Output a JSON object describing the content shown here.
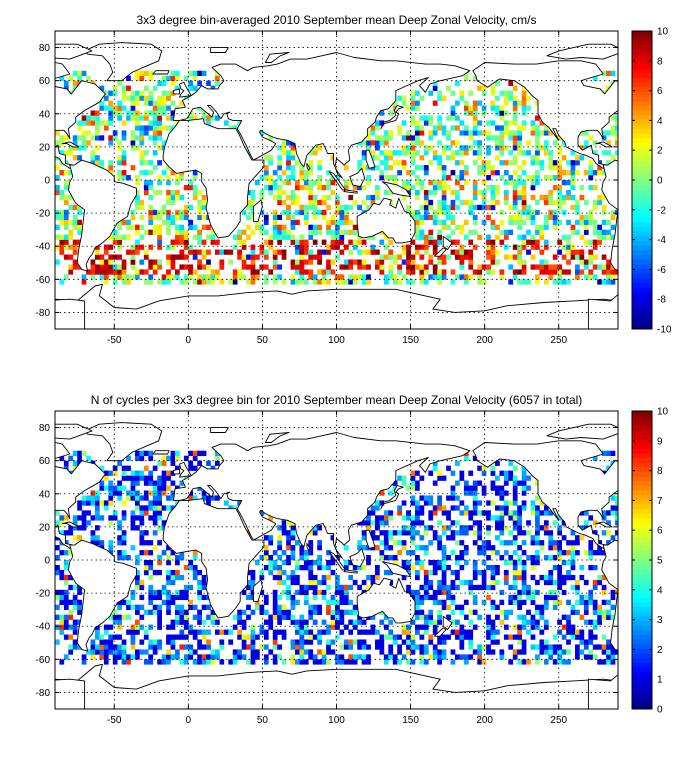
{
  "chart_data": [
    {
      "type": "heatmap",
      "title": "3x3 degree bin-averaged 2010 September mean Deep Zonal Velocity, cm/s",
      "xlim": [
        -90,
        290
      ],
      "ylim": [
        -90,
        90
      ],
      "xticks": [
        -50,
        0,
        50,
        100,
        150,
        200,
        250
      ],
      "yticks": [
        -80,
        -60,
        -40,
        -20,
        0,
        20,
        40,
        60,
        80
      ],
      "bin_size_deg": 3,
      "grid": true,
      "colorbar": {
        "min": -10,
        "max": 10,
        "ticks": [
          10,
          8,
          6,
          4,
          2,
          0,
          -2,
          -4,
          -6,
          -8,
          -10
        ],
        "colormap": "jet",
        "placement": "right"
      },
      "field": "deep_zonal_velocity"
    },
    {
      "type": "heatmap",
      "title": "N of cycles per 3x3 degree bin for 2010 September mean Deep Zonal Velocity (6057 in total)",
      "xlim": [
        -90,
        290
      ],
      "ylim": [
        -90,
        90
      ],
      "xticks": [
        -50,
        0,
        50,
        100,
        150,
        200,
        250
      ],
      "yticks": [
        -80,
        -60,
        -40,
        -20,
        0,
        20,
        40,
        60,
        80
      ],
      "bin_size_deg": 3,
      "grid": true,
      "colorbar": {
        "min": 0,
        "max": 10,
        "ticks": [
          10,
          9,
          8,
          7,
          6,
          5,
          4,
          3,
          2,
          1,
          0
        ],
        "colormap": "jet",
        "placement": "right"
      },
      "field": "cycle_count"
    }
  ],
  "colors": {
    "background": "#ffffff",
    "axes": "#000000",
    "land": "#ffffff"
  }
}
